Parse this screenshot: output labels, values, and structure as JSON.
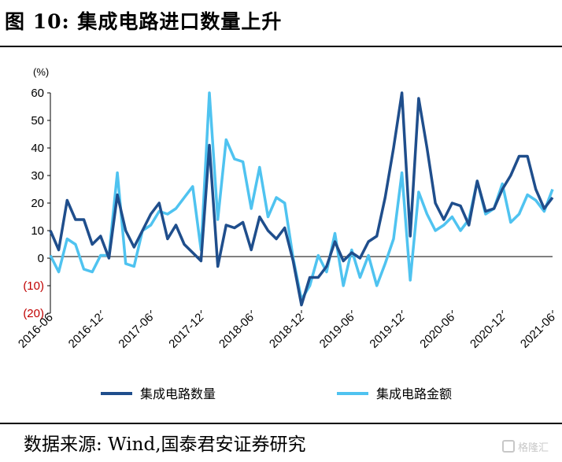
{
  "figure": {
    "title": "图 10:  集成电路进口数量上升",
    "source": "数据来源:  Wind,国泰君安证券研究",
    "watermark": "格隆汇"
  },
  "chart_data": {
    "type": "line",
    "unit_label": "(%)",
    "ylim": [
      -20,
      60
    ],
    "y_ticks": [
      60,
      50,
      40,
      30,
      20,
      10,
      0,
      -10,
      -20
    ],
    "y_tick_labels": [
      "60",
      "50",
      "40",
      "30",
      "20",
      "10",
      "0",
      "(10)",
      "(20)"
    ],
    "y_tick_colors": [
      "#000000",
      "#000000",
      "#000000",
      "#000000",
      "#000000",
      "#000000",
      "#000000",
      "#c00000",
      "#c00000"
    ],
    "x_tick_labels": [
      "2016-06",
      "2016-12",
      "2017-06",
      "2017-12",
      "2018-06",
      "2018-12",
      "2019-06",
      "2019-12",
      "2020-06",
      "2020-12",
      "2021-06"
    ],
    "x": [
      "2016-06",
      "2016-07",
      "2016-08",
      "2016-09",
      "2016-10",
      "2016-11",
      "2016-12",
      "2017-01",
      "2017-02",
      "2017-03",
      "2017-04",
      "2017-05",
      "2017-06",
      "2017-07",
      "2017-08",
      "2017-09",
      "2017-10",
      "2017-11",
      "2017-12",
      "2018-01",
      "2018-02",
      "2018-03",
      "2018-04",
      "2018-05",
      "2018-06",
      "2018-07",
      "2018-08",
      "2018-09",
      "2018-10",
      "2018-11",
      "2018-12",
      "2019-01",
      "2019-02",
      "2019-03",
      "2019-04",
      "2019-05",
      "2019-06",
      "2019-07",
      "2019-08",
      "2019-09",
      "2019-10",
      "2019-11",
      "2019-12",
      "2020-01",
      "2020-02",
      "2020-03",
      "2020-04",
      "2020-05",
      "2020-06",
      "2020-07",
      "2020-08",
      "2020-09",
      "2020-10",
      "2020-11",
      "2020-12",
      "2021-01",
      "2021-02",
      "2021-03",
      "2021-04",
      "2021-05",
      "2021-06"
    ],
    "series": [
      {
        "name": "集成电路数量",
        "color": "#1f4e8c",
        "values": [
          10,
          3,
          21,
          14,
          14,
          5,
          8,
          0,
          23,
          10,
          4,
          10,
          16,
          20,
          7,
          12,
          5,
          2,
          -1,
          41,
          -3,
          12,
          11,
          13,
          3,
          15,
          10,
          7,
          11,
          -1,
          -17,
          -7,
          -7,
          -3,
          6,
          -1,
          2,
          0,
          6,
          8,
          22,
          40,
          60,
          8,
          58,
          40,
          20,
          14,
          20,
          19,
          12,
          28,
          17,
          18,
          25,
          30,
          37,
          37,
          25,
          18,
          22
        ]
      },
      {
        "name": "集成电路金额",
        "color": "#4fc3f0",
        "values": [
          1,
          -5,
          7,
          5,
          -4,
          -5,
          1,
          1,
          31,
          -2,
          -3,
          10,
          12,
          17,
          16,
          18,
          22,
          26,
          3,
          60,
          14,
          43,
          36,
          35,
          18,
          33,
          15,
          22,
          20,
          0,
          -15,
          -10,
          1,
          -5,
          9,
          -10,
          3,
          -7,
          1,
          -10,
          -2,
          7,
          31,
          -8,
          24,
          16,
          10,
          12,
          15,
          10,
          14,
          28,
          16,
          18,
          27,
          13,
          16,
          23,
          21,
          17,
          25
        ]
      }
    ],
    "legend_position": "bottom",
    "grid": false
  }
}
